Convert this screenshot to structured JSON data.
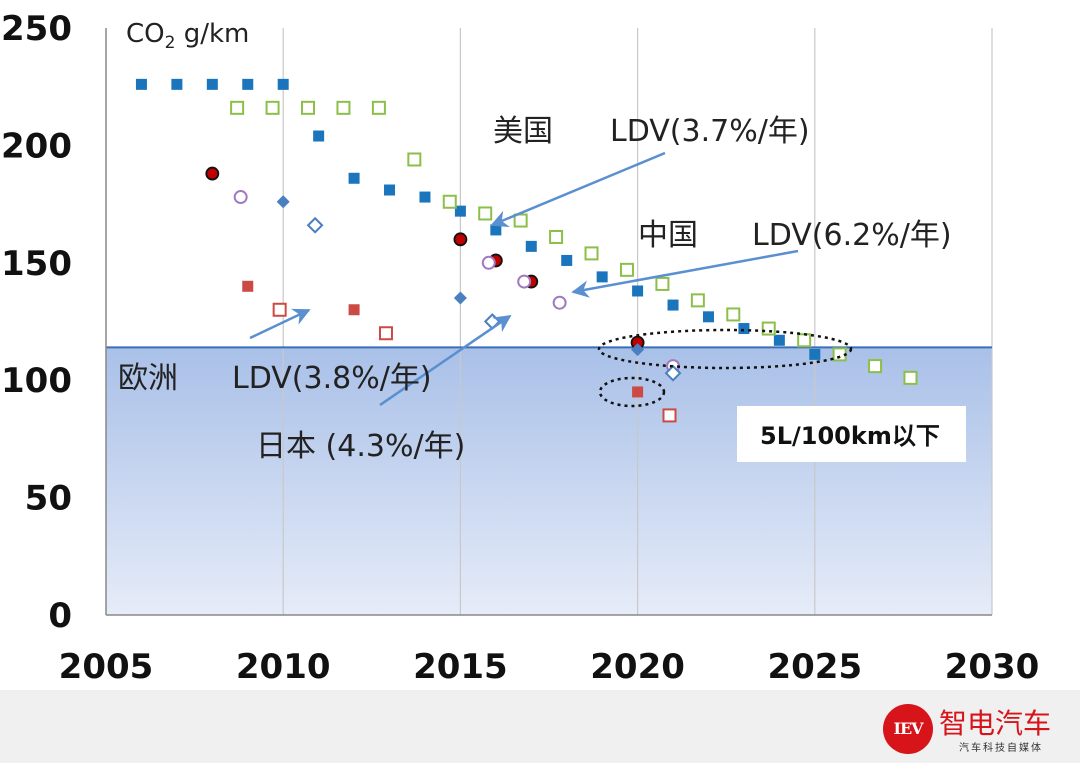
{
  "chart_data": {
    "type": "scatter",
    "ylabel_main": "CO",
    "ylabel_sub": "2",
    "ylabel_unit": " g/km",
    "xlim": [
      2005,
      2030
    ],
    "ylim": [
      0,
      250
    ],
    "x_ticks": [
      "2005",
      "2010",
      "2015",
      "2020",
      "2025",
      "2030"
    ],
    "y_ticks": [
      "0",
      "50",
      "100",
      "150",
      "200",
      "250"
    ],
    "reference_line_y": 114,
    "colors": {
      "us": "#1a75bc",
      "china": "#8cbf4a",
      "eu": "#cc4a44",
      "japan_open": "#a07ac0",
      "japan_diamond": "#4a7fc0",
      "japan_dot_fill": "#c00000",
      "shade_top": "#a9c0e8",
      "shade_bottom": "#e6ecf8",
      "arrow": "#5a8fd0",
      "reference_line": "#3a6fb8"
    },
    "series": [
      {
        "key": "us",
        "marker": "filled-square",
        "color": "#1a75bc",
        "points": [
          [
            2006,
            226
          ],
          [
            2007,
            226
          ],
          [
            2008,
            226
          ],
          [
            2009,
            226
          ],
          [
            2010,
            226
          ],
          [
            2011,
            204
          ],
          [
            2012,
            186
          ],
          [
            2013,
            181
          ],
          [
            2014,
            178
          ],
          [
            2015,
            172
          ],
          [
            2016,
            164
          ],
          [
            2017,
            157
          ],
          [
            2018,
            151
          ],
          [
            2019,
            144
          ],
          [
            2020,
            138
          ],
          [
            2021,
            132
          ],
          [
            2022,
            127
          ],
          [
            2023,
            122
          ],
          [
            2024,
            117
          ],
          [
            2025,
            111
          ]
        ]
      },
      {
        "key": "china",
        "marker": "open-square",
        "color": "#8cbf4a",
        "points": [
          [
            2008.7,
            216
          ],
          [
            2009.7,
            216
          ],
          [
            2010.7,
            216
          ],
          [
            2011.7,
            216
          ],
          [
            2012.7,
            216
          ],
          [
            2013.7,
            194
          ],
          [
            2014.7,
            176
          ],
          [
            2015.7,
            171
          ],
          [
            2016.7,
            168
          ],
          [
            2017.7,
            161
          ],
          [
            2018.7,
            154
          ],
          [
            2019.7,
            147
          ],
          [
            2020.7,
            141
          ],
          [
            2021.7,
            134
          ],
          [
            2022.7,
            128
          ],
          [
            2023.7,
            122
          ],
          [
            2024.7,
            117
          ],
          [
            2025.7,
            111
          ],
          [
            2026.7,
            106
          ],
          [
            2027.7,
            101
          ]
        ]
      },
      {
        "key": "eu",
        "marker": "filled-square",
        "color": "#cc4a44",
        "points": [
          [
            2009,
            140
          ],
          [
            2012,
            130
          ],
          [
            2020,
            95
          ]
        ]
      },
      {
        "key": "eu",
        "marker": "open-square",
        "color": "#cc4a44",
        "points": [
          [
            2009.9,
            130
          ],
          [
            2012.9,
            120
          ],
          [
            2020.9,
            85
          ]
        ]
      },
      {
        "key": "japan",
        "marker": "dot",
        "color": "#c00000",
        "points": [
          [
            2008,
            188
          ],
          [
            2015,
            160
          ],
          [
            2016,
            151
          ],
          [
            2017,
            142
          ],
          [
            2020,
            116
          ]
        ]
      },
      {
        "key": "japan",
        "marker": "open-circle",
        "color": "#a07ac0",
        "points": [
          [
            2008.8,
            178
          ],
          [
            2015.8,
            150
          ],
          [
            2016.8,
            142
          ],
          [
            2017.8,
            133
          ],
          [
            2021,
            106
          ]
        ]
      },
      {
        "key": "japan",
        "marker": "filled-diamond",
        "color": "#4a7fc0",
        "points": [
          [
            2010,
            176
          ],
          [
            2015,
            135
          ],
          [
            2020,
            113
          ]
        ]
      },
      {
        "key": "japan",
        "marker": "open-diamond",
        "color": "#4a7fc0",
        "points": [
          [
            2010.9,
            166
          ],
          [
            2015.9,
            125
          ],
          [
            2021,
            103
          ]
        ]
      }
    ],
    "annotations": [
      {
        "key": "us",
        "region": "美国",
        "label": "LDV(3.7%/年)"
      },
      {
        "key": "china",
        "region": "中国",
        "label": "LDV(6.2%/年)"
      },
      {
        "key": "eu",
        "region": "欧洲",
        "label": "LDV(3.8%/年)"
      },
      {
        "key": "japan",
        "label": "日本 (4.3%/年)"
      }
    ],
    "note": "5L/100km以下"
  },
  "watermark": {
    "logo_text": "IEV",
    "name": "智电汽车",
    "tagline": "汽车科技自媒体"
  }
}
